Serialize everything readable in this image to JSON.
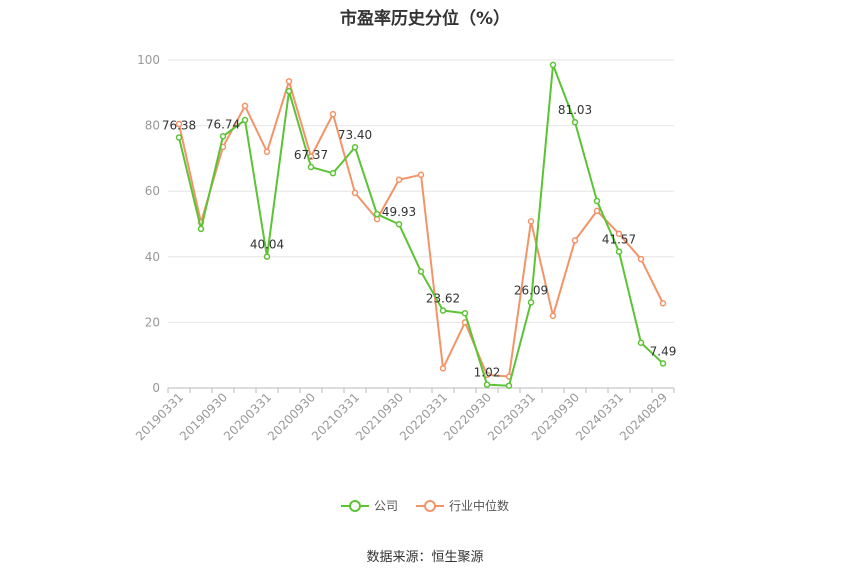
{
  "chart_data": {
    "type": "line",
    "title": "市盈率历史分位（%）",
    "xlabel": "",
    "ylabel": "",
    "ylim": [
      0,
      100
    ],
    "y_ticks": [
      0,
      20,
      40,
      60,
      80,
      100
    ],
    "x_tick_labels": [
      "20190331",
      "20190930",
      "20200331",
      "20200930",
      "20210331",
      "20210930",
      "20220331",
      "20220930",
      "20230331",
      "20230930",
      "20240331",
      "20240829"
    ],
    "x_tick_indices": [
      0,
      2,
      4,
      6,
      8,
      10,
      12,
      14,
      16,
      18,
      20,
      22
    ],
    "grid": true,
    "legend_position": "bottom",
    "series": [
      {
        "name": "公司",
        "color": "#5cc335",
        "values": [
          76.38,
          48.5,
          76.74,
          81.7,
          40.04,
          90.5,
          67.37,
          65.5,
          73.4,
          53.0,
          49.93,
          35.5,
          23.62,
          22.8,
          1.02,
          0.7,
          26.09,
          98.5,
          81.03,
          57.0,
          41.57,
          13.8,
          7.49
        ],
        "labels": {
          "0": "76.38",
          "2": "76.74",
          "4": "40.04",
          "6": "67.37",
          "8": "73.40",
          "10": "49.93",
          "12": "23.62",
          "14": "1.02",
          "16": "26.09",
          "18": "81.03",
          "20": "41.57",
          "22": "7.49"
        }
      },
      {
        "name": "行业中位数",
        "color": "#f39468",
        "values": [
          80.5,
          50.5,
          73.5,
          86.0,
          72.0,
          93.5,
          70.5,
          83.5,
          59.5,
          51.5,
          63.5,
          65.0,
          6.0,
          20.0,
          4.0,
          3.5,
          50.8,
          22.0,
          45.0,
          54.0,
          47.0,
          39.3,
          25.8
        ]
      }
    ]
  },
  "legend": {
    "company": "公司",
    "industry": "行业中位数"
  },
  "source": "数据来源：恒生聚源"
}
